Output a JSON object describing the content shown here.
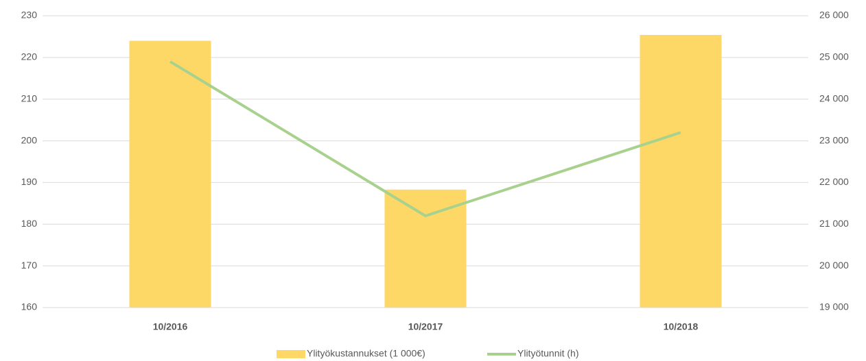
{
  "chart_data": {
    "type": "bar-line",
    "categories": [
      "10/2016",
      "10/2017",
      "10/2018"
    ],
    "series": [
      {
        "name": "Ylityökustannukset (1 000€)",
        "color": "#fdd867",
        "type": "bar",
        "axis": "y",
        "values": [
          224,
          188.3,
          225.4
        ]
      },
      {
        "name": "Ylityötunnit (h)",
        "color": "#a9d18e",
        "type": "line",
        "axis": "y2",
        "values": [
          24900,
          21200,
          23200
        ]
      }
    ],
    "ylim": [
      160,
      230
    ],
    "yticks": [
      160,
      170,
      180,
      190,
      200,
      210,
      220,
      230
    ],
    "y2lim": [
      19000,
      26000
    ],
    "y2ticks": [
      {
        "value": 19000,
        "label": "19 000"
      },
      {
        "value": 20000,
        "label": "20 000"
      },
      {
        "value": 21000,
        "label": "21 000"
      },
      {
        "value": 22000,
        "label": "22 000"
      },
      {
        "value": 23000,
        "label": "23 000"
      },
      {
        "value": 24000,
        "label": "24 000"
      },
      {
        "value": 25000,
        "label": "25 000"
      },
      {
        "value": 26000,
        "label": "26 000"
      }
    ],
    "grid": true,
    "legend": "bottom"
  }
}
